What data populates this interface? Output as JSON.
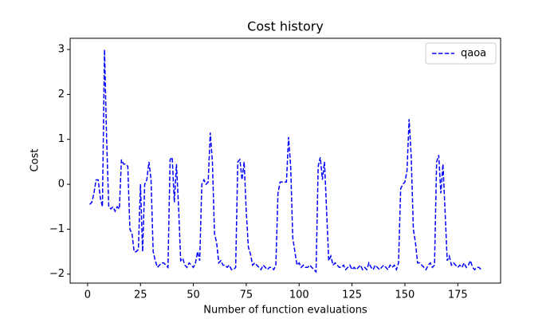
{
  "chart_data": {
    "type": "line",
    "title": "Cost history",
    "xlabel": "Number of function evaluations",
    "ylabel": "Cost",
    "x": [
      1,
      2,
      3,
      4,
      5,
      6,
      7,
      8,
      9,
      10,
      11,
      12,
      13,
      14,
      15,
      16,
      17,
      18,
      19,
      20,
      21,
      22,
      23,
      24,
      25,
      26,
      27,
      28,
      29,
      30,
      31,
      32,
      33,
      34,
      35,
      36,
      37,
      38,
      39,
      40,
      41,
      42,
      43,
      44,
      45,
      46,
      47,
      48,
      49,
      50,
      51,
      52,
      53,
      54,
      55,
      56,
      57,
      58,
      59,
      60,
      61,
      62,
      63,
      64,
      65,
      66,
      67,
      68,
      69,
      70,
      71,
      72,
      73,
      74,
      75,
      76,
      77,
      78,
      79,
      80,
      81,
      82,
      83,
      84,
      85,
      86,
      87,
      88,
      89,
      90,
      91,
      92,
      93,
      94,
      95,
      96,
      97,
      98,
      99,
      100,
      101,
      102,
      103,
      104,
      105,
      106,
      107,
      108,
      109,
      110,
      111,
      112,
      113,
      114,
      115,
      116,
      117,
      118,
      119,
      120,
      121,
      122,
      123,
      124,
      125,
      126,
      127,
      128,
      129,
      130,
      131,
      132,
      133,
      134,
      135,
      136,
      137,
      138,
      139,
      140,
      141,
      142,
      143,
      144,
      145,
      146,
      147,
      148,
      149,
      150,
      151,
      152,
      153,
      154,
      155,
      156,
      157,
      158,
      159,
      160,
      161,
      162,
      163,
      164,
      165,
      166,
      167,
      168,
      169,
      170,
      171,
      172,
      173,
      174,
      175,
      176,
      177,
      178,
      179,
      180,
      181,
      182,
      183,
      184,
      185,
      186
    ],
    "series": [
      {
        "name": "qaoa",
        "color": "#0000ff",
        "linestyle": "dashed",
        "values": [
          -0.45,
          -0.4,
          -0.2,
          0.1,
          0.1,
          -0.3,
          -0.5,
          3.0,
          1.0,
          -0.5,
          -0.55,
          -0.5,
          -0.6,
          -0.5,
          -0.55,
          0.55,
          0.45,
          0.45,
          0.4,
          -1.0,
          -1.1,
          -1.5,
          -1.5,
          -1.45,
          0.0,
          -1.5,
          0.0,
          0.1,
          0.5,
          0.1,
          -1.5,
          -1.7,
          -1.85,
          -1.8,
          -1.75,
          -1.75,
          -1.8,
          -1.85,
          0.55,
          0.6,
          -0.4,
          0.45,
          -0.5,
          -1.7,
          -1.65,
          -1.8,
          -1.85,
          -1.75,
          -1.8,
          -1.85,
          -1.75,
          -1.5,
          -1.7,
          0.0,
          0.1,
          0.0,
          0.05,
          1.15,
          0.5,
          -1.1,
          -1.3,
          -1.75,
          -1.7,
          -1.8,
          -1.8,
          -1.85,
          -1.8,
          -1.9,
          -1.9,
          -1.85,
          0.5,
          0.55,
          0.1,
          0.5,
          -0.6,
          -1.4,
          -1.55,
          -1.8,
          -1.75,
          -1.8,
          -1.85,
          -1.9,
          -1.8,
          -1.85,
          -1.9,
          -1.85,
          -1.85,
          -1.9,
          -1.8,
          -0.2,
          0.05,
          0.05,
          0.05,
          0.05,
          1.05,
          0.4,
          -1.2,
          -1.5,
          -1.8,
          -1.75,
          -1.85,
          -1.8,
          -1.85,
          -1.85,
          -1.8,
          -1.85,
          -1.9,
          -1.95,
          0.4,
          0.6,
          0.1,
          0.5,
          -0.6,
          -1.7,
          -1.6,
          -1.8,
          -1.75,
          -1.8,
          -1.85,
          -1.85,
          -1.8,
          -1.9,
          -1.85,
          -1.8,
          -1.9,
          -1.85,
          -1.9,
          -1.85,
          -1.8,
          -1.9,
          -1.85,
          -1.9,
          -1.75,
          -1.85,
          -1.9,
          -1.8,
          -1.85,
          -1.9,
          -1.85,
          -1.8,
          -1.85,
          -1.9,
          -1.8,
          -1.85,
          -1.8,
          -1.9,
          -1.75,
          -0.1,
          0.0,
          0.05,
          0.3,
          1.45,
          0.6,
          -1.0,
          -1.3,
          -1.75,
          -1.75,
          -1.8,
          -1.85,
          -1.9,
          -1.8,
          -1.75,
          -1.85,
          -1.8,
          0.5,
          0.65,
          -0.2,
          0.45,
          -0.6,
          -1.7,
          -1.6,
          -1.8,
          -1.75,
          -1.8,
          -1.85,
          -1.8,
          -1.85,
          -1.75,
          -1.85,
          -1.8,
          -1.7,
          -1.85,
          -1.9,
          -1.85,
          -1.85,
          -1.9
        ]
      }
    ],
    "xlim": [
      -8.25,
      195.25
    ],
    "xticks": [
      0,
      25,
      50,
      75,
      100,
      125,
      150,
      175
    ],
    "ylim": [
      -2.2,
      3.25
    ],
    "yticks": [
      {
        "value": -2,
        "label": "−2"
      },
      {
        "value": -1,
        "label": "−1"
      },
      0,
      1,
      2,
      3
    ],
    "legend": "upper right"
  }
}
